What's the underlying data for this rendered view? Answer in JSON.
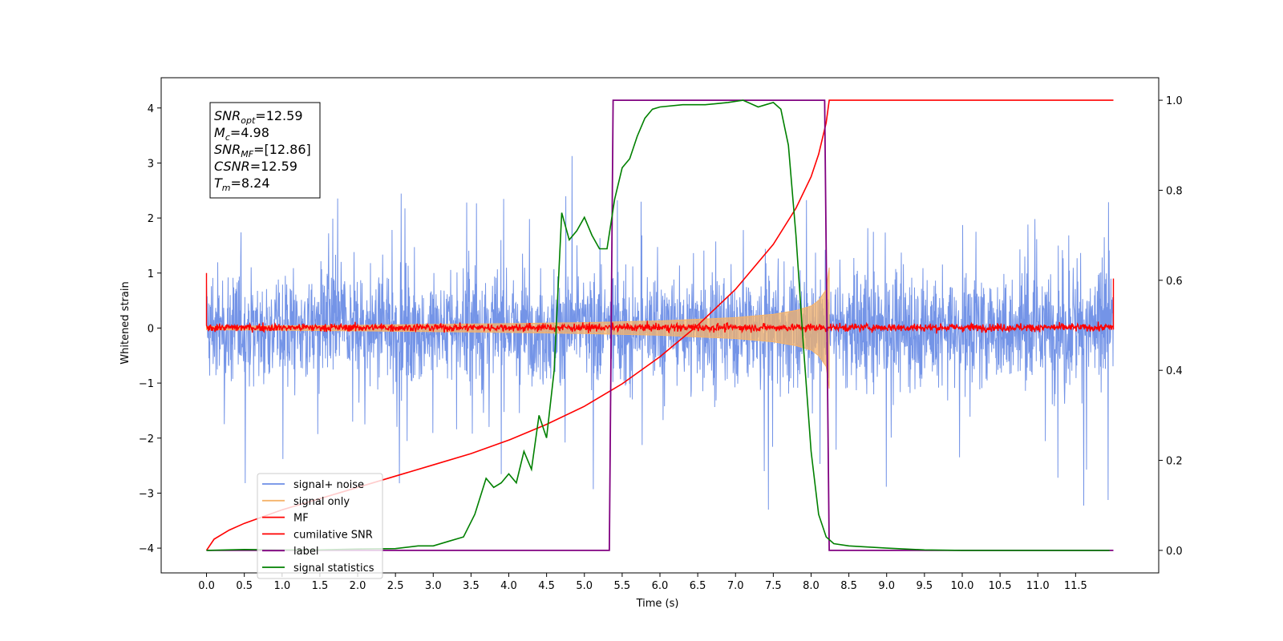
{
  "chart_data": {
    "type": "line",
    "xlabel": "Time (s)",
    "ylabel": "Whitened strain",
    "xlim": [
      -0.6,
      12.6
    ],
    "ylim": [
      -4.45,
      4.55
    ],
    "ylim_right": [
      -0.05,
      1.05
    ],
    "x_ticks": [
      "0.0",
      "0.5",
      "1.0",
      "1.5",
      "2.0",
      "2.5",
      "3.0",
      "3.5",
      "4.0",
      "4.5",
      "5.0",
      "5.5",
      "6.0",
      "6.5",
      "7.0",
      "7.5",
      "8.0",
      "8.5",
      "9.0",
      "9.5",
      "10.0",
      "10.5",
      "11.0",
      "11.5"
    ],
    "y_ticks": [
      "−4",
      "−3",
      "−2",
      "−1",
      "0",
      "1",
      "2",
      "3",
      "4"
    ],
    "y_ticks_right": [
      "0.0",
      "0.2",
      "0.4",
      "0.6",
      "0.8",
      "1.0"
    ],
    "annotation": [
      {
        "label": "SNR",
        "sub": "opt",
        "value": "=12.59"
      },
      {
        "label": "M",
        "sub": "c",
        "value": "=4.98"
      },
      {
        "label": "SNR",
        "sub": "MF",
        "value": "=[12.86]"
      },
      {
        "label": "CSNR",
        "sub": "",
        "value": "=12.59"
      },
      {
        "label": "T",
        "sub": "m",
        "value": "=8.24"
      }
    ],
    "signal_noise": {
      "name": "signal+ noise",
      "color": "#6d8ee6",
      "x_range": [
        0.0,
        12.0
      ],
      "band": [
        -0.9,
        1.2
      ],
      "spike_range": [
        -3.3,
        4.2
      ]
    },
    "signal_only": {
      "name": "signal only",
      "color": "#f5b36a",
      "x_range": [
        0.0,
        8.24
      ],
      "envelope": [
        [
          0.0,
          0.03
        ],
        [
          2.0,
          0.05
        ],
        [
          4.0,
          0.08
        ],
        [
          5.0,
          0.1
        ],
        [
          6.0,
          0.13
        ],
        [
          7.0,
          0.19
        ],
        [
          7.5,
          0.25
        ],
        [
          7.8,
          0.32
        ],
        [
          8.0,
          0.4
        ],
        [
          8.1,
          0.5
        ],
        [
          8.2,
          0.7
        ],
        [
          8.24,
          1.1
        ]
      ]
    },
    "matched_filter": {
      "name": "MF",
      "color": "#ff0000",
      "x_range": [
        0.0,
        12.0
      ],
      "band": [
        -0.12,
        0.15
      ],
      "end_values": [
        1.0,
        0.9
      ]
    },
    "cumulative_snr": {
      "name": "cumilative SNR",
      "color": "#ff0000",
      "x": [
        0.0,
        0.1,
        0.3,
        0.5,
        1.0,
        1.5,
        2.0,
        2.5,
        3.0,
        3.5,
        4.0,
        4.5,
        5.0,
        5.5,
        6.0,
        6.5,
        7.0,
        7.5,
        7.8,
        8.0,
        8.1,
        8.2,
        8.24,
        8.25,
        12.0
      ],
      "values": [
        0.0,
        0.025,
        0.045,
        0.06,
        0.09,
        0.115,
        0.14,
        0.165,
        0.19,
        0.215,
        0.245,
        0.28,
        0.32,
        0.37,
        0.43,
        0.5,
        0.58,
        0.68,
        0.76,
        0.83,
        0.88,
        0.95,
        1.0,
        1.0,
        1.0
      ]
    },
    "label_series": {
      "name": "label",
      "color": "#800080",
      "x": [
        0.0,
        5.33,
        5.38,
        8.18,
        8.24,
        12.0
      ],
      "values": [
        0.0,
        0.0,
        1.0,
        1.0,
        0.0,
        0.0
      ]
    },
    "signal_statistics": {
      "name": "signal statistics",
      "color": "#008000",
      "x": [
        0.0,
        0.5,
        1.0,
        1.5,
        2.0,
        2.5,
        2.8,
        3.0,
        3.2,
        3.4,
        3.55,
        3.7,
        3.8,
        3.9,
        4.0,
        4.1,
        4.2,
        4.3,
        4.4,
        4.5,
        4.6,
        4.7,
        4.8,
        4.9,
        5.0,
        5.1,
        5.2,
        5.3,
        5.4,
        5.5,
        5.6,
        5.7,
        5.8,
        5.9,
        6.0,
        6.3,
        6.6,
        6.9,
        7.1,
        7.3,
        7.4,
        7.5,
        7.6,
        7.7,
        7.8,
        7.9,
        8.0,
        8.1,
        8.2,
        8.3,
        8.5,
        9.0,
        9.5,
        10.0,
        11.0,
        11.95
      ],
      "values": [
        0.0,
        0.002,
        0.001,
        0.001,
        0.003,
        0.004,
        0.01,
        0.01,
        0.02,
        0.03,
        0.08,
        0.16,
        0.14,
        0.15,
        0.17,
        0.15,
        0.22,
        0.18,
        0.3,
        0.25,
        0.4,
        0.75,
        0.69,
        0.71,
        0.74,
        0.7,
        0.67,
        0.67,
        0.78,
        0.85,
        0.87,
        0.92,
        0.96,
        0.98,
        0.985,
        0.99,
        0.99,
        0.995,
        1.0,
        0.985,
        0.99,
        0.995,
        0.98,
        0.9,
        0.7,
        0.45,
        0.22,
        0.08,
        0.03,
        0.015,
        0.01,
        0.005,
        0.001,
        0.0,
        0.0,
        0.0
      ]
    },
    "legend": {
      "placement": "lower-left",
      "entries": [
        {
          "label": "signal+ noise",
          "color": "#6d8ee6"
        },
        {
          "label": "signal only",
          "color": "#f5b36a"
        },
        {
          "label": "MF",
          "color": "#ff0000"
        },
        {
          "label": "cumilative SNR",
          "color": "#ff0000"
        },
        {
          "label": "label",
          "color": "#800080"
        },
        {
          "label": "signal statistics",
          "color": "#008000"
        }
      ]
    }
  }
}
